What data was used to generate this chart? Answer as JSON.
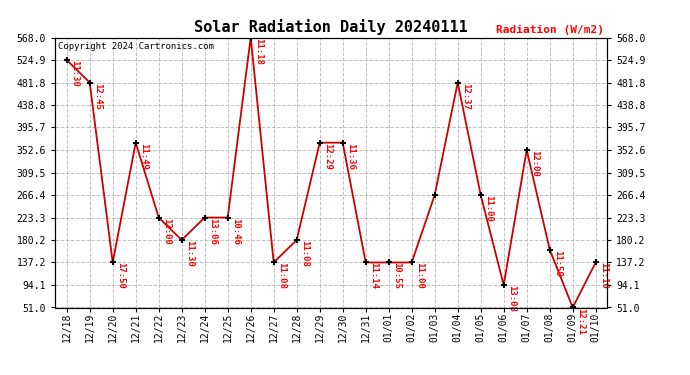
{
  "title": "Solar Radiation Daily 20240111",
  "ylabel": "Radiation (W/m2)",
  "copyright": "Copyright 2024 Cartronics.com",
  "background_color": "#ffffff",
  "line_color": "#cc0000",
  "marker_color": "#000000",
  "x_labels": [
    "12/18",
    "12/19",
    "12/20",
    "12/21",
    "12/22",
    "12/23",
    "12/24",
    "12/25",
    "12/26",
    "12/27",
    "12/28",
    "12/29",
    "12/30",
    "12/31",
    "01/01",
    "01/02",
    "01/03",
    "01/04",
    "01/05",
    "01/06",
    "01/07",
    "01/08",
    "01/09",
    "01/10"
  ],
  "y_values": [
    524.9,
    481.8,
    137.2,
    366.6,
    223.3,
    180.2,
    223.3,
    223.3,
    568.0,
    137.2,
    180.2,
    366.6,
    366.6,
    137.2,
    137.2,
    137.2,
    266.4,
    481.8,
    266.4,
    94.1,
    352.6,
    162.0,
    51.0,
    137.2
  ],
  "time_labels": [
    "11:30",
    "12:45",
    "17:50",
    "11:49",
    "12:00",
    "11:30",
    "13:06",
    "10:46",
    "11:18",
    "11:08",
    "11:08",
    "12:29",
    "11:36",
    "11:14",
    "10:55",
    "11:00",
    "",
    "12:37",
    "11:00",
    "13:08",
    "12:00",
    "11:59",
    "12:21",
    "11:10"
  ],
  "yticks": [
    51.0,
    94.1,
    137.2,
    180.2,
    223.3,
    266.4,
    309.5,
    352.6,
    395.7,
    438.8,
    481.8,
    524.9,
    568.0
  ],
  "ymin": 51.0,
  "ymax": 568.0,
  "figwidth": 6.9,
  "figheight": 3.75,
  "dpi": 100
}
